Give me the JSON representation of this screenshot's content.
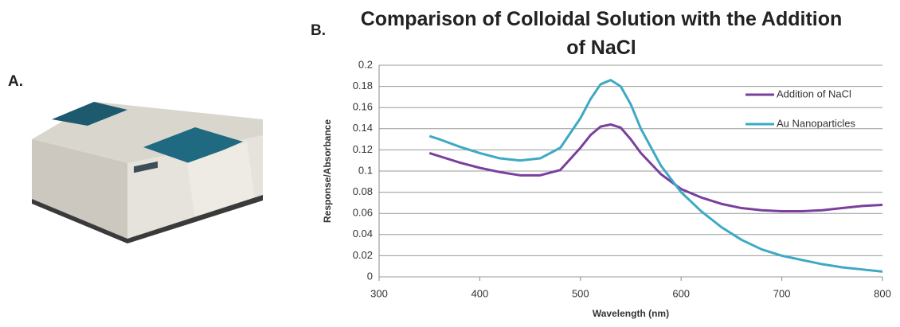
{
  "panel_labels": [
    "A.",
    "B."
  ],
  "chart_data": {
    "type": "line",
    "title": "Comparison of Colloidal Solution with the Addition of NaCl",
    "x_label": "Wavelength (nm)",
    "y_label": "Response/Absorbance",
    "x": [
      350,
      360,
      380,
      400,
      420,
      440,
      460,
      480,
      500,
      510,
      520,
      530,
      540,
      550,
      560,
      580,
      600,
      620,
      640,
      660,
      680,
      700,
      720,
      740,
      760,
      780,
      800
    ],
    "series": [
      {
        "name": "Addition of NaCl",
        "color": "#7a3f9d",
        "values": [
          0.117,
          0.114,
          0.108,
          0.103,
          0.099,
          0.096,
          0.096,
          0.101,
          0.122,
          0.134,
          0.142,
          0.144,
          0.141,
          0.13,
          0.117,
          0.097,
          0.083,
          0.075,
          0.069,
          0.065,
          0.063,
          0.062,
          0.062,
          0.063,
          0.065,
          0.067,
          0.068
        ]
      },
      {
        "name": "Au Nanoparticles",
        "color": "#3ea9c4",
        "values": [
          0.133,
          0.13,
          0.123,
          0.117,
          0.112,
          0.11,
          0.112,
          0.122,
          0.15,
          0.168,
          0.182,
          0.186,
          0.18,
          0.163,
          0.14,
          0.105,
          0.08,
          0.062,
          0.047,
          0.035,
          0.026,
          0.02,
          0.016,
          0.012,
          0.009,
          0.007,
          0.005
        ]
      }
    ],
    "xlim": [
      300,
      800
    ],
    "xticks": [
      300,
      400,
      500,
      600,
      700,
      800
    ],
    "ylim": [
      0,
      0.2
    ],
    "yticks": [
      0,
      0.02,
      0.04,
      0.06,
      0.08,
      0.1,
      0.12,
      0.14,
      0.16,
      0.18,
      0.2
    ],
    "grid": true,
    "legend": "upper right"
  }
}
